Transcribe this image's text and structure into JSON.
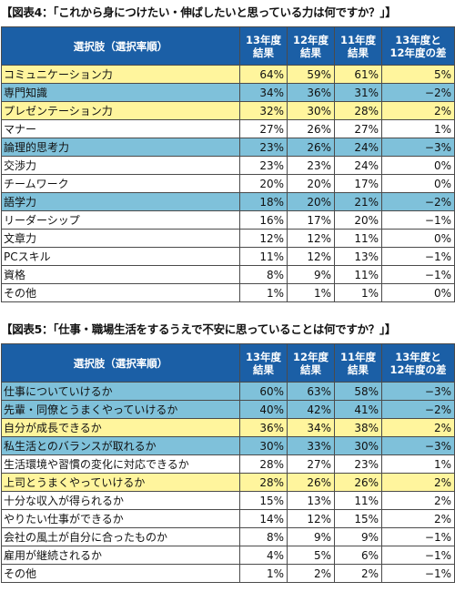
{
  "chart_data": [
    {
      "type": "table",
      "title": "【図表4：「これから身につけたい・伸ばしたいと思っている力は何ですか？」】",
      "columns": [
        "選択肢（選択率順）",
        "13年度\n結果",
        "12年度\n結果",
        "11年度\n結果",
        "13年度と\n12年度の差"
      ],
      "rows": [
        {
          "label": "コミュニケーション力",
          "values": [
            "64%",
            "59%",
            "61%",
            "5%"
          ],
          "highlight": "yellow"
        },
        {
          "label": "専門知識",
          "values": [
            "34%",
            "36%",
            "31%",
            "−2%"
          ],
          "highlight": "blue"
        },
        {
          "label": "プレゼンテーション力",
          "values": [
            "32%",
            "30%",
            "28%",
            "2%"
          ],
          "highlight": "yellow"
        },
        {
          "label": "マナー",
          "values": [
            "27%",
            "26%",
            "27%",
            "1%"
          ],
          "highlight": "white"
        },
        {
          "label": "論理的思考力",
          "values": [
            "23%",
            "26%",
            "24%",
            "−3%"
          ],
          "highlight": "blue"
        },
        {
          "label": "交渉力",
          "values": [
            "23%",
            "23%",
            "24%",
            "0%"
          ],
          "highlight": "white"
        },
        {
          "label": "チームワーク",
          "values": [
            "20%",
            "20%",
            "17%",
            "0%"
          ],
          "highlight": "white"
        },
        {
          "label": "語学力",
          "values": [
            "18%",
            "20%",
            "21%",
            "−2%"
          ],
          "highlight": "blue"
        },
        {
          "label": "リーダーシップ",
          "values": [
            "16%",
            "17%",
            "20%",
            "−1%"
          ],
          "highlight": "white"
        },
        {
          "label": "文章力",
          "values": [
            "12%",
            "12%",
            "11%",
            "0%"
          ],
          "highlight": "white"
        },
        {
          "label": "PCスキル",
          "values": [
            "11%",
            "12%",
            "13%",
            "−1%"
          ],
          "highlight": "white"
        },
        {
          "label": "資格",
          "values": [
            "8%",
            "9%",
            "11%",
            "−1%"
          ],
          "highlight": "white"
        },
        {
          "label": "その他",
          "values": [
            "1%",
            "1%",
            "1%",
            "0%"
          ],
          "highlight": "white"
        }
      ]
    },
    {
      "type": "table",
      "title": "【図表5：「仕事・職場生活をするうえで不安に思っていることは何ですか？」】",
      "columns": [
        "選択肢（選択率順）",
        "13年度\n結果",
        "12年度\n結果",
        "11年度\n結果",
        "13年度と\n12年度の差"
      ],
      "rows": [
        {
          "label": "仕事についていけるか",
          "values": [
            "60%",
            "63%",
            "58%",
            "−3%"
          ],
          "highlight": "blue"
        },
        {
          "label": "先輩・同僚とうまくやっていけるか",
          "values": [
            "40%",
            "42%",
            "41%",
            "−2%"
          ],
          "highlight": "blue"
        },
        {
          "label": "自分が成長できるか",
          "values": [
            "36%",
            "34%",
            "38%",
            "2%"
          ],
          "highlight": "yellow"
        },
        {
          "label": "私生活とのバランスが取れるか",
          "values": [
            "30%",
            "33%",
            "30%",
            "−3%"
          ],
          "highlight": "blue"
        },
        {
          "label": "生活環境や習慣の変化に対応できるか",
          "values": [
            "28%",
            "27%",
            "23%",
            "1%"
          ],
          "highlight": "white"
        },
        {
          "label": "上司とうまくやっていけるか",
          "values": [
            "28%",
            "26%",
            "26%",
            "2%"
          ],
          "highlight": "yellow"
        },
        {
          "label": "十分な収入が得られるか",
          "values": [
            "15%",
            "13%",
            "11%",
            "2%"
          ],
          "highlight": "white"
        },
        {
          "label": "やりたい仕事ができるか",
          "values": [
            "14%",
            "12%",
            "15%",
            "2%"
          ],
          "highlight": "white"
        },
        {
          "label": "会社の風土が自分に合ったものか",
          "values": [
            "8%",
            "9%",
            "9%",
            "−1%"
          ],
          "highlight": "white"
        },
        {
          "label": "雇用が継続されるか",
          "values": [
            "4%",
            "5%",
            "6%",
            "−1%"
          ],
          "highlight": "white"
        },
        {
          "label": "その他",
          "values": [
            "1%",
            "2%",
            "2%",
            "−1%"
          ],
          "highlight": "white"
        }
      ]
    }
  ]
}
